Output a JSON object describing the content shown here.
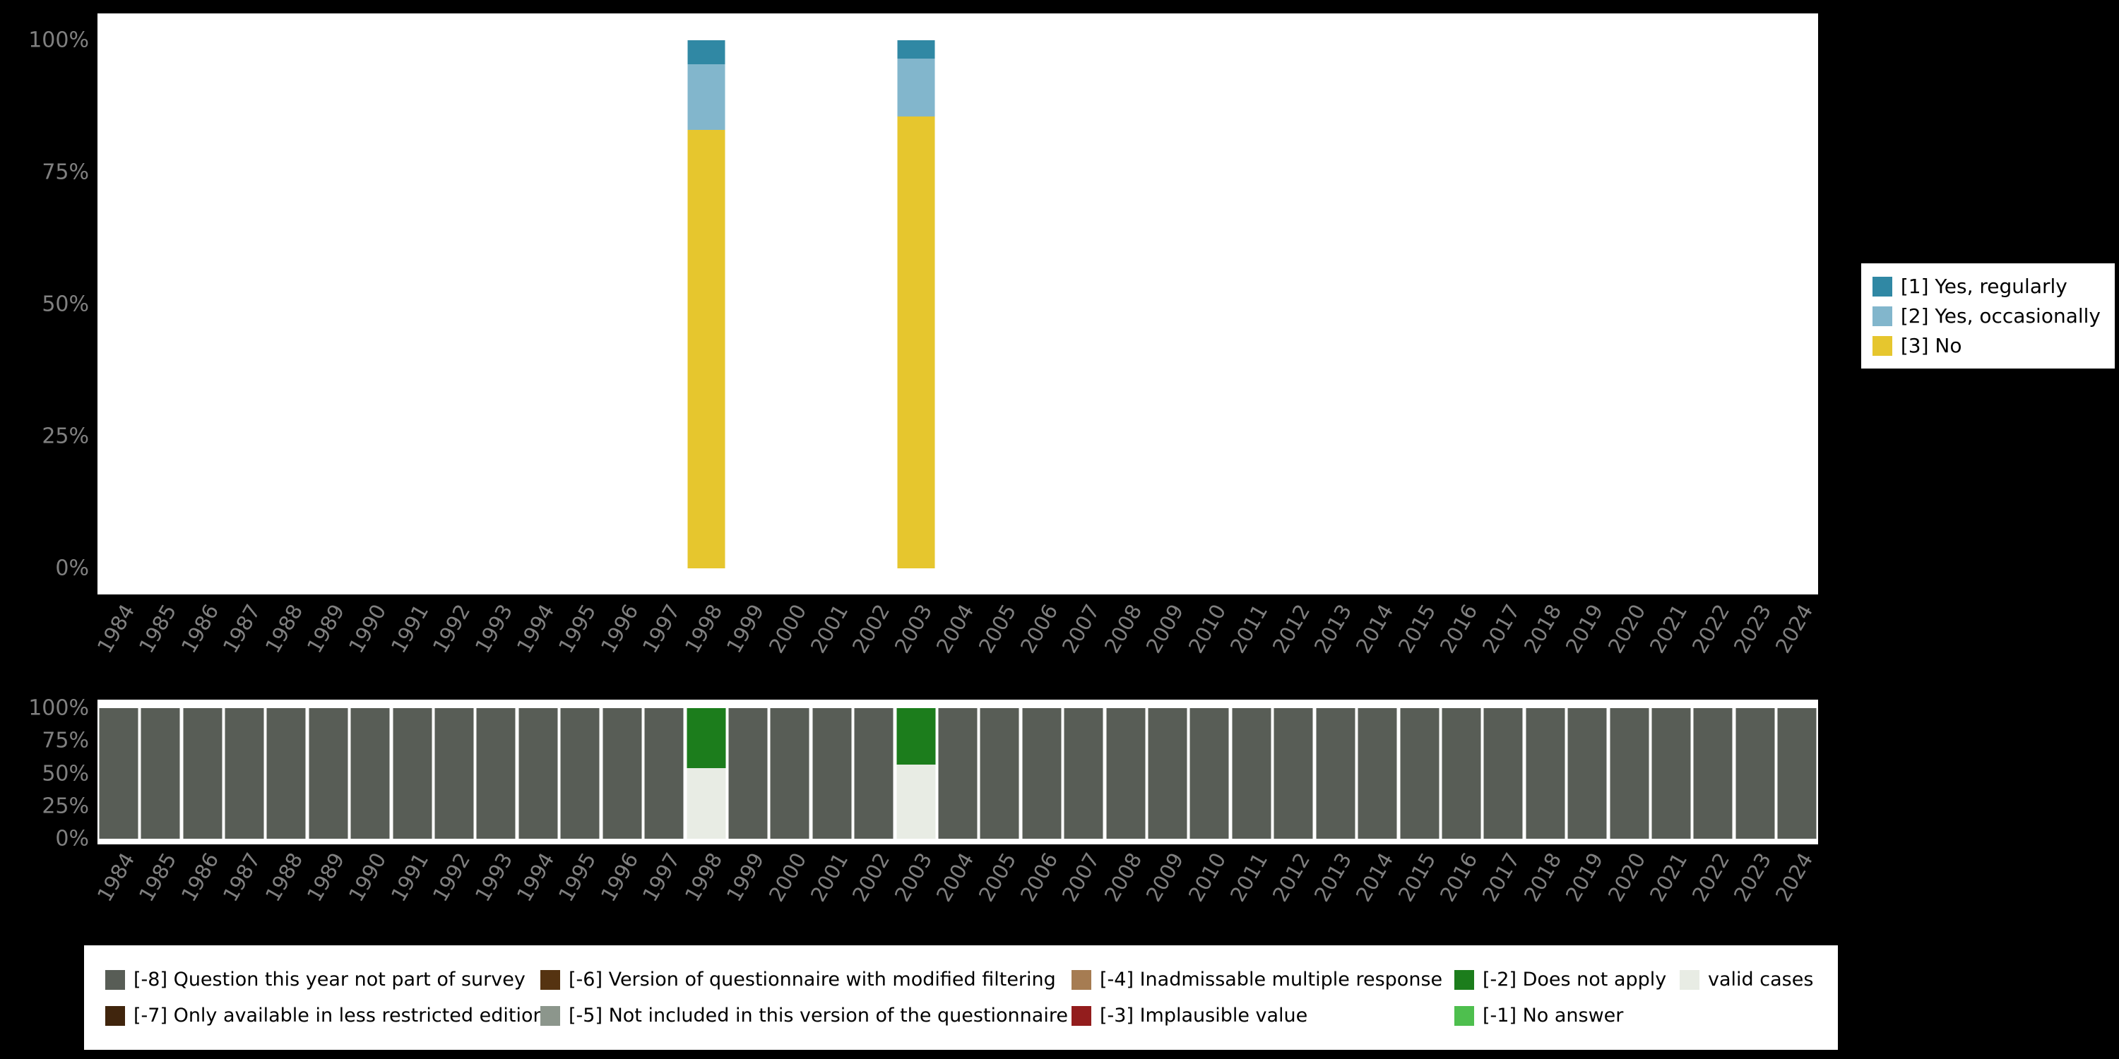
{
  "style": {
    "background": "#000000",
    "plot_background": "#ffffff",
    "axis_text_color": "#808080"
  },
  "chart_data": [
    {
      "name": "main-distribution",
      "type": "bar",
      "stacked": true,
      "unit": "percent",
      "ylim": [
        0,
        100
      ],
      "yticks": [
        "100%",
        "75%",
        "50%",
        "25%",
        "0%"
      ],
      "grid": false,
      "legend_position": "right",
      "categories": [
        "1984",
        "1985",
        "1986",
        "1987",
        "1988",
        "1989",
        "1990",
        "1991",
        "1992",
        "1993",
        "1994",
        "1995",
        "1996",
        "1997",
        "1998",
        "1999",
        "2000",
        "2001",
        "2002",
        "2003",
        "2004",
        "2005",
        "2006",
        "2007",
        "2008",
        "2009",
        "2010",
        "2011",
        "2012",
        "2013",
        "2014",
        "2015",
        "2016",
        "2017",
        "2018",
        "2019",
        "2020",
        "2021",
        "2022",
        "2023",
        "2024"
      ],
      "series": [
        {
          "name": "[3] No",
          "color": "#e6c62e",
          "values_by_year": {
            "1998": 83.0,
            "2003": 85.5
          }
        },
        {
          "name": "[2] Yes, occasionally",
          "color": "#82b6cc",
          "values_by_year": {
            "1998": 12.5,
            "2003": 11.0
          }
        },
        {
          "name": "[1] Yes, regularly",
          "color": "#3088a4",
          "values_by_year": {
            "1998": 4.5,
            "2003": 3.5
          }
        }
      ]
    },
    {
      "name": "missing-values",
      "type": "bar",
      "stacked": true,
      "unit": "percent",
      "ylim": [
        0,
        100
      ],
      "yticks": [
        "100%",
        "75%",
        "50%",
        "25%",
        "0%"
      ],
      "grid": false,
      "legend_position": "bottom",
      "categories": [
        "1984",
        "1985",
        "1986",
        "1987",
        "1988",
        "1989",
        "1990",
        "1991",
        "1992",
        "1993",
        "1994",
        "1995",
        "1996",
        "1997",
        "1998",
        "1999",
        "2000",
        "2001",
        "2002",
        "2003",
        "2004",
        "2005",
        "2006",
        "2007",
        "2008",
        "2009",
        "2010",
        "2011",
        "2012",
        "2013",
        "2014",
        "2015",
        "2016",
        "2017",
        "2018",
        "2019",
        "2020",
        "2021",
        "2022",
        "2023",
        "2024"
      ],
      "series": [
        {
          "name": "valid cases",
          "color": "#e8ece4",
          "values_by_year": {
            "1998": 54,
            "2003": 57
          }
        },
        {
          "name": "[-2] Does not apply",
          "color": "#1c7d1c",
          "values_by_year": {
            "1998": 46,
            "2003": 43
          }
        },
        {
          "name": "[-8] Question this year not part of survey",
          "color": "#585d56",
          "default": 100,
          "values_by_year": {
            "1998": 0,
            "2003": 0
          }
        }
      ]
    }
  ],
  "legend_main": {
    "items": [
      {
        "label": "[1] Yes, regularly",
        "color": "#3088a4"
      },
      {
        "label": "[2] Yes, occasionally",
        "color": "#82b6cc"
      },
      {
        "label": "[3] No",
        "color": "#e6c62e"
      }
    ]
  },
  "legend_missing": {
    "items": [
      {
        "label": "[-8] Question this year not part of survey",
        "color": "#585d56"
      },
      {
        "label": "[-6] Version of questionnaire with modified filtering",
        "color": "#553311"
      },
      {
        "label": "[-4] Inadmissable multiple response",
        "color": "#a67c52"
      },
      {
        "label": "[-2] Does not apply",
        "color": "#1c7d1c"
      },
      {
        "label": "valid cases",
        "color": "#e8ece4"
      },
      {
        "label": "[-7] Only available in less restricted edition",
        "color": "#40250d"
      },
      {
        "label": "[-5] Not included in this version of the questionnaire",
        "color": "#8c968c"
      },
      {
        "label": "[-3] Implausible value",
        "color": "#931d1d"
      },
      {
        "label": "[-1] No answer",
        "color": "#4ebf4e"
      }
    ]
  }
}
